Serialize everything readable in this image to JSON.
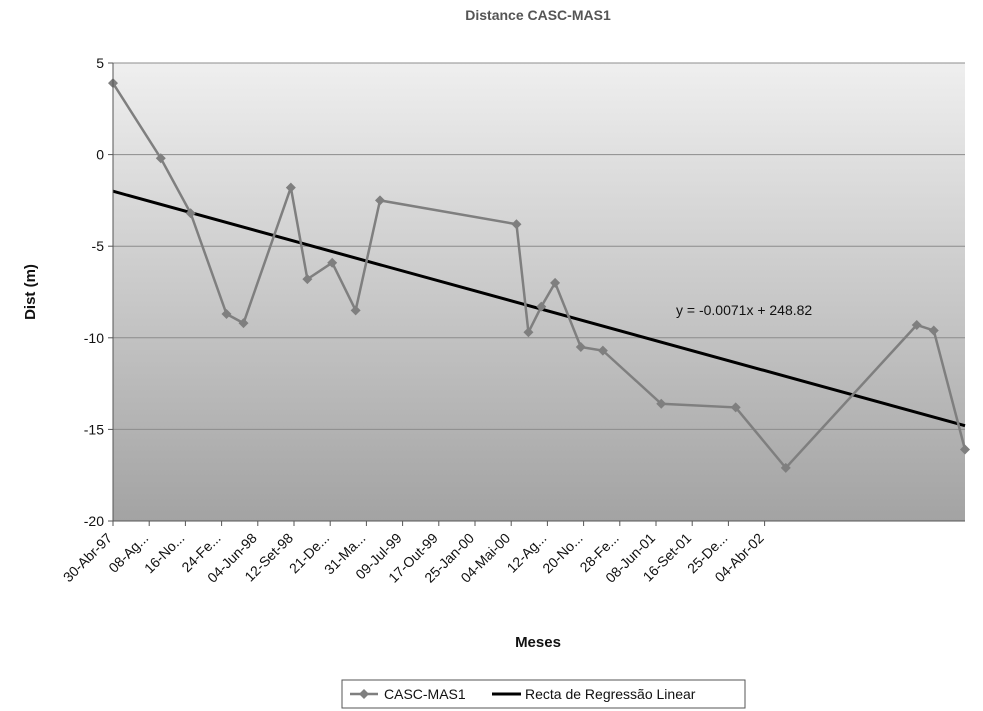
{
  "chart_data": {
    "type": "line",
    "title": "Distance CASC-MAS1",
    "xlabel": "Meses",
    "ylabel": "Dist (m)",
    "ylim": [
      -20,
      5
    ],
    "y_ticks": [
      5,
      0,
      -5,
      -10,
      -15,
      -20
    ],
    "x_tick_labels": [
      "30-Abr-97",
      "08-Ag...",
      "16-No...",
      "24-Fe...",
      "04-Jun-98",
      "12-Set-98",
      "21-De...",
      "31-Ma...",
      "09-Jul-99",
      "17-Out-99",
      "25-Jan-00",
      "04-Mai-00",
      "12-Ag...",
      "20-No...",
      "28-Fe...",
      "08-Jun-01",
      "16-Set-01",
      "25-De...",
      "04-Abr-02"
    ],
    "x_range": [
      "1997-04-30",
      "2002-05-28"
    ],
    "grid": true,
    "legend": "bottom",
    "series": [
      {
        "name": "CASC-MAS1",
        "color": "#7f7f7f",
        "marker": "diamond",
        "x": [
          "1997-04-30",
          "1997-08-12",
          "1997-10-16",
          "1998-01-02",
          "1998-02-08",
          "1998-05-22",
          "1998-06-27",
          "1998-08-20",
          "1998-10-10",
          "1998-12-02",
          "1999-09-25",
          "1999-10-21",
          "1999-11-18",
          "1999-12-18",
          "2000-02-12",
          "2000-03-31",
          "2000-08-05",
          "2001-01-14",
          "2001-05-03",
          "2002-02-12",
          "2002-03-21",
          "2002-05-28"
        ],
        "y": [
          3.9,
          -0.2,
          -3.2,
          -8.7,
          -9.2,
          -1.8,
          -6.8,
          -5.9,
          -8.5,
          -2.5,
          -3.8,
          -9.7,
          -8.3,
          -7.0,
          -10.5,
          -10.7,
          -13.6,
          -13.8,
          -17.1,
          -9.3,
          -9.6,
          -16.1
        ]
      },
      {
        "name": "Recta de Regressão Linear",
        "color": "#000000",
        "x": [
          "1997-04-30",
          "2002-05-28"
        ],
        "y": [
          -2.0,
          -14.8
        ]
      }
    ],
    "annotations": [
      {
        "text": "y = -0.0071x + 248.82"
      }
    ]
  }
}
